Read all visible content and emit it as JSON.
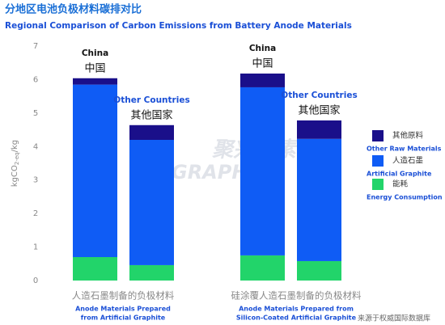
{
  "chart_data": {
    "type": "stacked_bar",
    "title": "分地区电池负极材料碳排对比",
    "subtitle": "Regional Comparison of Carbon Emissions from Battery Anode Materials",
    "ylabel": {
      "main": "kgCO",
      "sub": "2-eq",
      "tail": "/kg"
    },
    "ylim": [
      0,
      7
    ],
    "yticks": [
      0,
      1,
      2,
      3,
      4,
      5,
      6,
      7
    ],
    "categories": [
      "China",
      "Other Countries",
      "China",
      "Other Countries"
    ],
    "categories_zh": [
      "中国",
      "其他国家",
      "中国",
      "其他国家"
    ],
    "groups": [
      {
        "name": "人造石墨制备的负极材料",
        "name_en": [
          "Anode Materials Prepared",
          "from Artificial Graphite"
        ]
      },
      {
        "name": "硅涂覆人造石墨制备的负极材料",
        "name_en": [
          "Anode Materials Prepared from",
          "Silicon-Coated Artificial Graphite"
        ]
      }
    ],
    "series": [
      {
        "name": "能耗",
        "name_en": "Energy Consumption",
        "color": "#22d46a",
        "values": [
          0.7,
          0.46,
          0.75,
          0.58
        ]
      },
      {
        "name": "人造石墨",
        "name_en": "Artificial Graphite",
        "color": "#0f5cf5",
        "values": [
          5.15,
          3.74,
          5.02,
          3.65
        ]
      },
      {
        "name": "其他原料",
        "name_en": "Other Raw Materials",
        "color": "#1a0f8a",
        "values": [
          0.19,
          0.44,
          0.41,
          0.55
        ]
      }
    ],
    "watermark": [
      "聚兴碳素",
      "GRAPHITE"
    ],
    "source": "来源于权威国际数据库"
  }
}
